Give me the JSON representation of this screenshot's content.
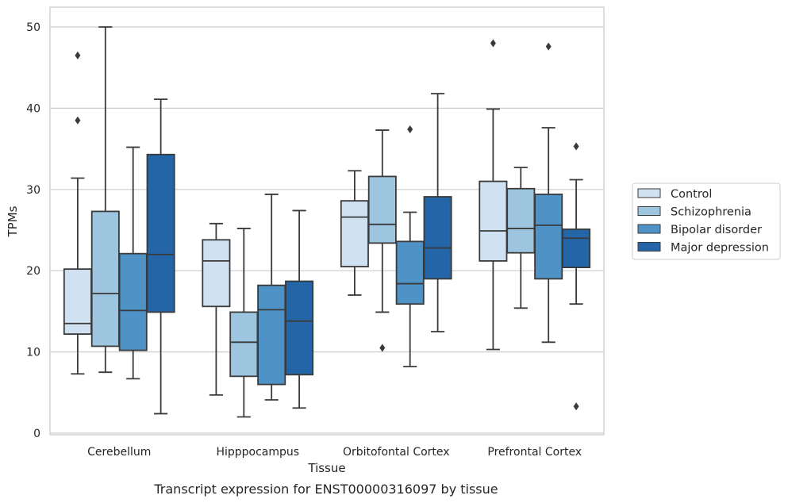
{
  "chart_data": {
    "type": "box",
    "caption": "Transcript expression for ENST00000316097 by tissue",
    "xlabel": "Tissue",
    "ylabel": "TPMs",
    "ylim": [
      -0.6,
      52.5
    ],
    "yticks": [
      0,
      10,
      20,
      30,
      40,
      50
    ],
    "grid": "horizontal",
    "legend_position": "right",
    "categories": [
      "Cerebellum",
      "Hipppocampus",
      "Orbitofontal Cortex",
      "Prefrontal Cortex"
    ],
    "series": [
      {
        "name": "Control",
        "color": "#d0e1f2",
        "boxes": [
          {
            "whisker_low": 7.3,
            "q1": 12.2,
            "median": 13.5,
            "q3": 20.2,
            "whisker_high": 31.4,
            "outliers": [
              38.5,
              46.5
            ]
          },
          {
            "whisker_low": 4.7,
            "q1": 15.6,
            "median": 21.2,
            "q3": 23.8,
            "whisker_high": 25.8,
            "outliers": []
          },
          {
            "whisker_low": 17.0,
            "q1": 20.5,
            "median": 26.6,
            "q3": 28.6,
            "whisker_high": 32.3,
            "outliers": []
          },
          {
            "whisker_low": 10.3,
            "q1": 21.2,
            "median": 24.9,
            "q3": 31.0,
            "whisker_high": 39.9,
            "outliers": [
              48.0
            ]
          }
        ]
      },
      {
        "name": "Schizophrenia",
        "color": "#9dc5e0",
        "boxes": [
          {
            "whisker_low": 7.5,
            "q1": 10.7,
            "median": 17.2,
            "q3": 27.3,
            "whisker_high": 50.0,
            "outliers": []
          },
          {
            "whisker_low": 2.0,
            "q1": 7.0,
            "median": 11.2,
            "q3": 14.9,
            "whisker_high": 25.2,
            "outliers": []
          },
          {
            "whisker_low": 14.9,
            "q1": 23.4,
            "median": 25.7,
            "q3": 31.6,
            "whisker_high": 37.3,
            "outliers": [
              10.5
            ]
          },
          {
            "whisker_low": 15.4,
            "q1": 22.2,
            "median": 25.2,
            "q3": 30.1,
            "whisker_high": 32.7,
            "outliers": []
          }
        ]
      },
      {
        "name": "Bipolar disorder",
        "color": "#4f92c6",
        "boxes": [
          {
            "whisker_low": 6.7,
            "q1": 10.2,
            "median": 15.1,
            "q3": 22.1,
            "whisker_high": 35.2,
            "outliers": []
          },
          {
            "whisker_low": 4.1,
            "q1": 6.0,
            "median": 15.2,
            "q3": 18.2,
            "whisker_high": 29.4,
            "outliers": []
          },
          {
            "whisker_low": 8.2,
            "q1": 15.9,
            "median": 18.4,
            "q3": 23.6,
            "whisker_high": 27.2,
            "outliers": [
              37.4
            ]
          },
          {
            "whisker_low": 11.2,
            "q1": 19.0,
            "median": 25.6,
            "q3": 29.4,
            "whisker_high": 37.6,
            "outliers": [
              47.6
            ]
          }
        ]
      },
      {
        "name": "Major depression",
        "color": "#2465a8",
        "boxes": [
          {
            "whisker_low": 2.4,
            "q1": 14.9,
            "median": 22.0,
            "q3": 34.3,
            "whisker_high": 41.1,
            "outliers": []
          },
          {
            "whisker_low": 3.1,
            "q1": 7.2,
            "median": 13.8,
            "q3": 18.7,
            "whisker_high": 27.4,
            "outliers": []
          },
          {
            "whisker_low": 12.5,
            "q1": 19.0,
            "median": 22.8,
            "q3": 29.1,
            "whisker_high": 41.8,
            "outliers": []
          },
          {
            "whisker_low": 15.9,
            "q1": 20.4,
            "median": 24.0,
            "q3": 25.1,
            "whisker_high": 31.2,
            "outliers": [
              35.3,
              3.3
            ]
          }
        ]
      }
    ]
  }
}
